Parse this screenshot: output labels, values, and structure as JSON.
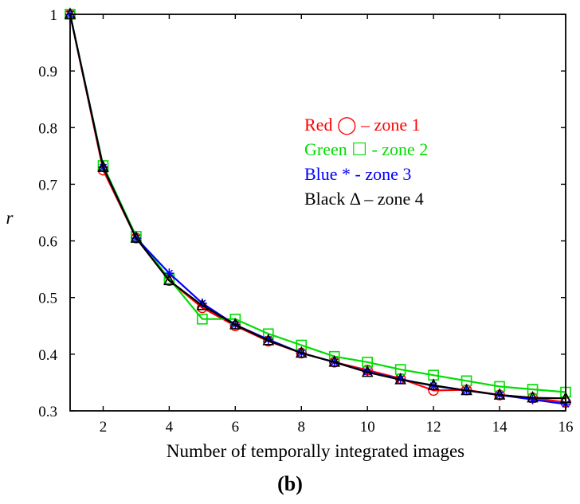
{
  "chart_data": {
    "type": "line",
    "xlabel": "Number of temporally integrated images",
    "ylabel": "r",
    "caption": "(b)",
    "xlim": [
      1,
      16
    ],
    "ylim": [
      0.3,
      1.0
    ],
    "x_ticks": [
      2,
      4,
      6,
      8,
      10,
      12,
      14,
      16
    ],
    "y_ticks": [
      0.3,
      0.4,
      0.5,
      0.6,
      0.7,
      0.8,
      0.9,
      1.0
    ],
    "y_tick_labels": [
      "0.3",
      "0.4",
      "0.5",
      "0.6",
      "0.7",
      "0.8",
      "0.9",
      "1"
    ],
    "grid": false,
    "legend_position": "top-right",
    "x": [
      1,
      2,
      3,
      4,
      5,
      6,
      7,
      8,
      9,
      10,
      11,
      12,
      13,
      14,
      15,
      16
    ],
    "series": [
      {
        "legend": "Red ◯ – zone 1",
        "color": "#ff0000",
        "marker": "circle",
        "values": [
          1.0,
          0.725,
          0.605,
          0.53,
          0.482,
          0.45,
          0.423,
          0.402,
          0.386,
          0.372,
          0.357,
          0.336,
          0.337,
          0.328,
          0.323,
          0.315
        ]
      },
      {
        "legend": "Green ☐ - zone 2",
        "color": "#00dd00",
        "marker": "square",
        "values": [
          1.0,
          0.733,
          0.608,
          0.533,
          0.462,
          0.462,
          0.436,
          0.416,
          0.396,
          0.386,
          0.373,
          0.363,
          0.353,
          0.343,
          0.338,
          0.333
        ]
      },
      {
        "legend": "Blue * - zone 3",
        "color": "#0000ff",
        "marker": "star",
        "values": [
          1.0,
          0.73,
          0.605,
          0.543,
          0.49,
          0.452,
          0.426,
          0.402,
          0.386,
          0.369,
          0.356,
          0.344,
          0.336,
          0.328,
          0.32,
          0.312
        ]
      },
      {
        "legend": "Black Δ – zone 4",
        "color": "#000000",
        "marker": "triangle",
        "values": [
          1.0,
          0.73,
          0.605,
          0.53,
          0.486,
          0.452,
          0.424,
          0.402,
          0.386,
          0.368,
          0.355,
          0.345,
          0.336,
          0.328,
          0.323,
          0.322
        ]
      }
    ]
  }
}
